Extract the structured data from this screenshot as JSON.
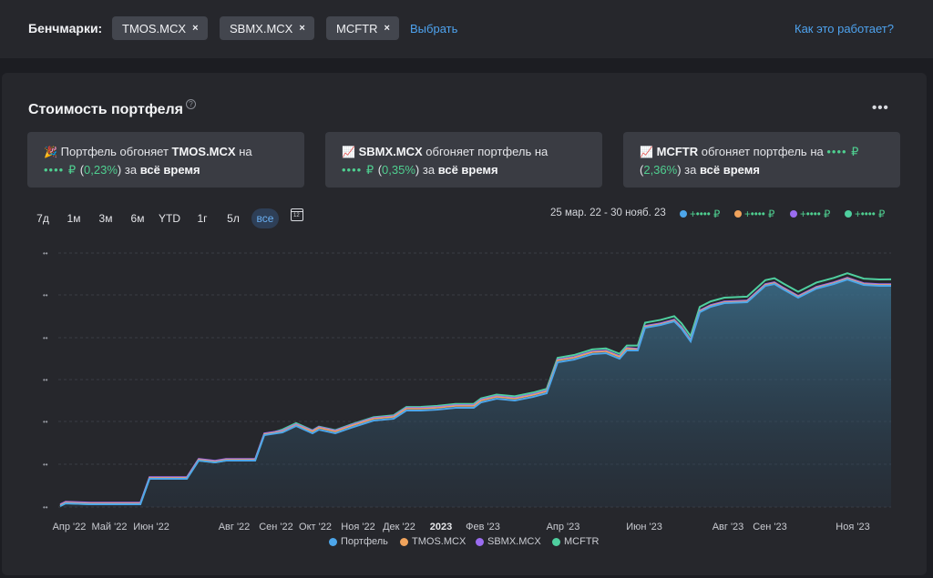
{
  "benchmarks": {
    "label": "Бенчмарки:",
    "chips": [
      {
        "label": "TMOS.MCX",
        "remove": "×"
      },
      {
        "label": "SBMX.MCX",
        "remove": "×"
      },
      {
        "label": "MCFTR",
        "remove": "×"
      }
    ],
    "select_link": "Выбрать",
    "how_link": "Как это работает?"
  },
  "card": {
    "title": "Стоимость портфеля",
    "help_icon": "?",
    "more_icon": "•••"
  },
  "info_cards": [
    {
      "icon": "🎉",
      "pre": "Портфель обгоняет ",
      "ticker": "TMOS.MCX",
      "mid": " на",
      "amount": "•••• ₽",
      "pct": "0,23%",
      "post": " за ",
      "period": "всё время"
    },
    {
      "icon": "📈",
      "ticker": "SBMX.MCX",
      "mid": " обгоняет портфель на",
      "amount": "•••• ₽",
      "pct": "0,35%",
      "post": " за ",
      "period": "всё время"
    },
    {
      "icon": "📈",
      "ticker": "MCFTR",
      "mid": " обгоняет портфель на ",
      "amount": "•••• ₽",
      "pct": "2,36%",
      "post": " за ",
      "period": "всё время"
    }
  ],
  "periods": [
    "7д",
    "1м",
    "3м",
    "6м",
    "YTD",
    "1г",
    "5л",
    "все"
  ],
  "active_period": "все",
  "calendar_icon": "12",
  "date_range": "25 мар. 22 - 30 нояб. 23",
  "legend_values": [
    {
      "color": "#4da6ea",
      "value": "+•••• ₽"
    },
    {
      "color": "#f0a35c",
      "value": "+•••• ₽"
    },
    {
      "color": "#9a6cf0",
      "value": "+•••• ₽"
    },
    {
      "color": "#4fcf9f",
      "value": "+•••• ₽"
    }
  ],
  "chart_data": {
    "type": "line",
    "x": [
      "Апр '22",
      "Май '22",
      "Июн '22",
      "Авг '22",
      "Сен '22",
      "Окт '22",
      "Ноя '22",
      "Дек '22",
      "2023",
      "Фев '23",
      "Апр '23",
      "Июн '23",
      "Авг '23",
      "Сен '23",
      "Ноя '23"
    ],
    "y_tick_labels": [
      "••",
      "••",
      "••",
      "••",
      "••",
      "••",
      "••"
    ],
    "series": [
      {
        "name": "Портфель",
        "color": "#4da6ea"
      },
      {
        "name": "TMOS.MCX",
        "color": "#f0a35c"
      },
      {
        "name": "SBMX.MCX",
        "color": "#9a6cf0"
      },
      {
        "name": "MCFTR",
        "color": "#4fcf9f"
      }
    ],
    "grid": true,
    "legend": "bottom"
  }
}
